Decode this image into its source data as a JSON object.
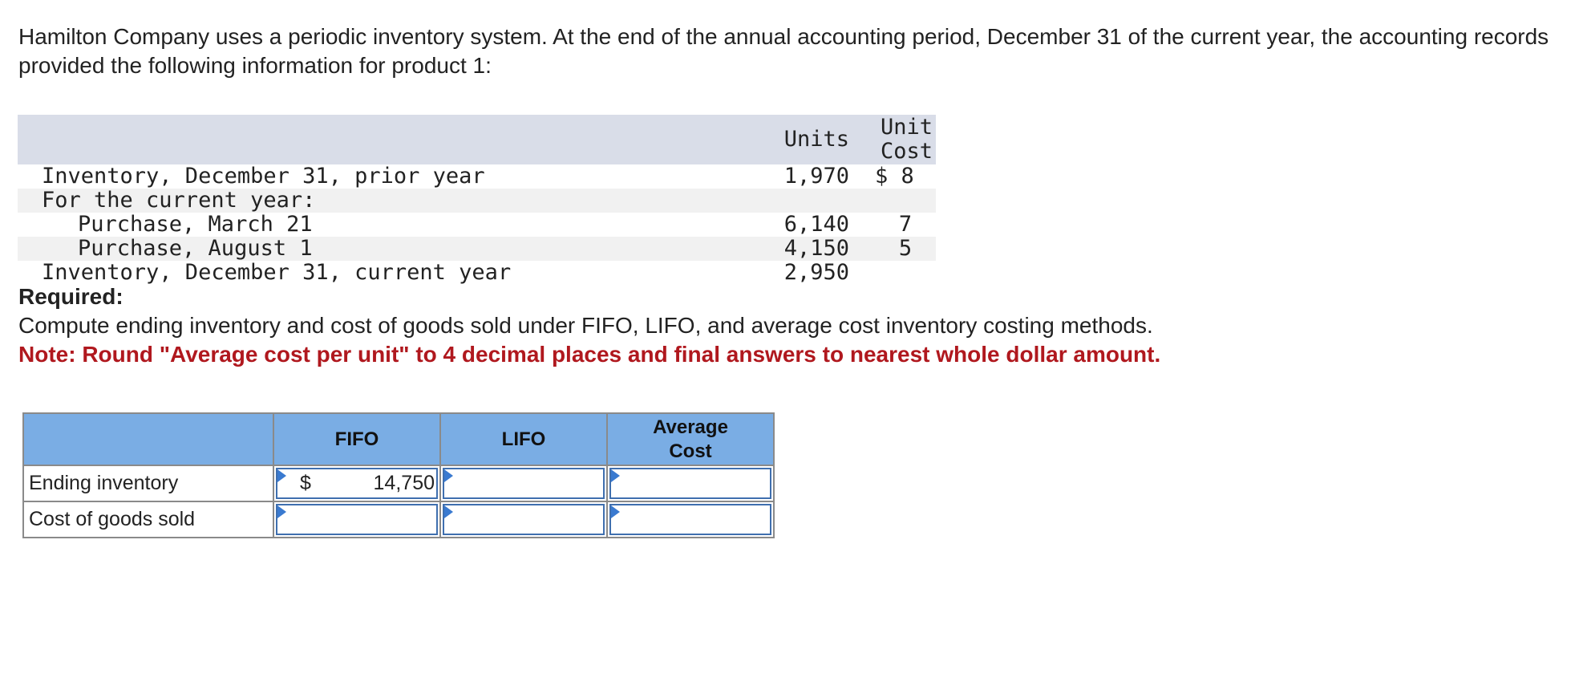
{
  "intro": "Hamilton Company uses a periodic inventory system. At the end of the annual accounting period, December 31 of the current year, the accounting records provided the following information for product 1:",
  "data_table": {
    "headers": {
      "units": "Units",
      "unit_cost_line1": "Unit",
      "unit_cost_line2": "Cost"
    },
    "rows": [
      {
        "label": "Inventory, December 31, prior year",
        "units": "1,970",
        "cost": "$ 8"
      },
      {
        "label": "For the current year:",
        "units": "",
        "cost": ""
      },
      {
        "label": "Purchase, March 21",
        "units": "6,140",
        "cost": "7"
      },
      {
        "label": "Purchase, August 1",
        "units": "4,150",
        "cost": "5"
      },
      {
        "label": "Inventory, December 31, current year",
        "units": "2,950",
        "cost": ""
      }
    ]
  },
  "required": "Required:",
  "instructions": "Compute ending inventory and cost of goods sold under FIFO, LIFO, and average cost inventory costing methods.",
  "note": "Note: Round \"Average cost per unit\" to 4 decimal places and final answers to nearest whole dollar amount.",
  "answer_table": {
    "headers": {
      "fifo": "FIFO",
      "lifo": "LIFO",
      "avg_line1": "Average",
      "avg_line2": "Cost"
    },
    "rows": [
      {
        "label": "Ending inventory",
        "fifo_currency": "$",
        "fifo_value": "14,750",
        "lifo_value": "",
        "avg_value": ""
      },
      {
        "label": "Cost of goods sold",
        "fifo_currency": "",
        "fifo_value": "",
        "lifo_value": "",
        "avg_value": ""
      }
    ]
  },
  "colors": {
    "header_blue": "#7aade4",
    "input_border": "#3f6faf",
    "note_red": "#b0181e",
    "data_header_bg": "#d9dde8"
  }
}
